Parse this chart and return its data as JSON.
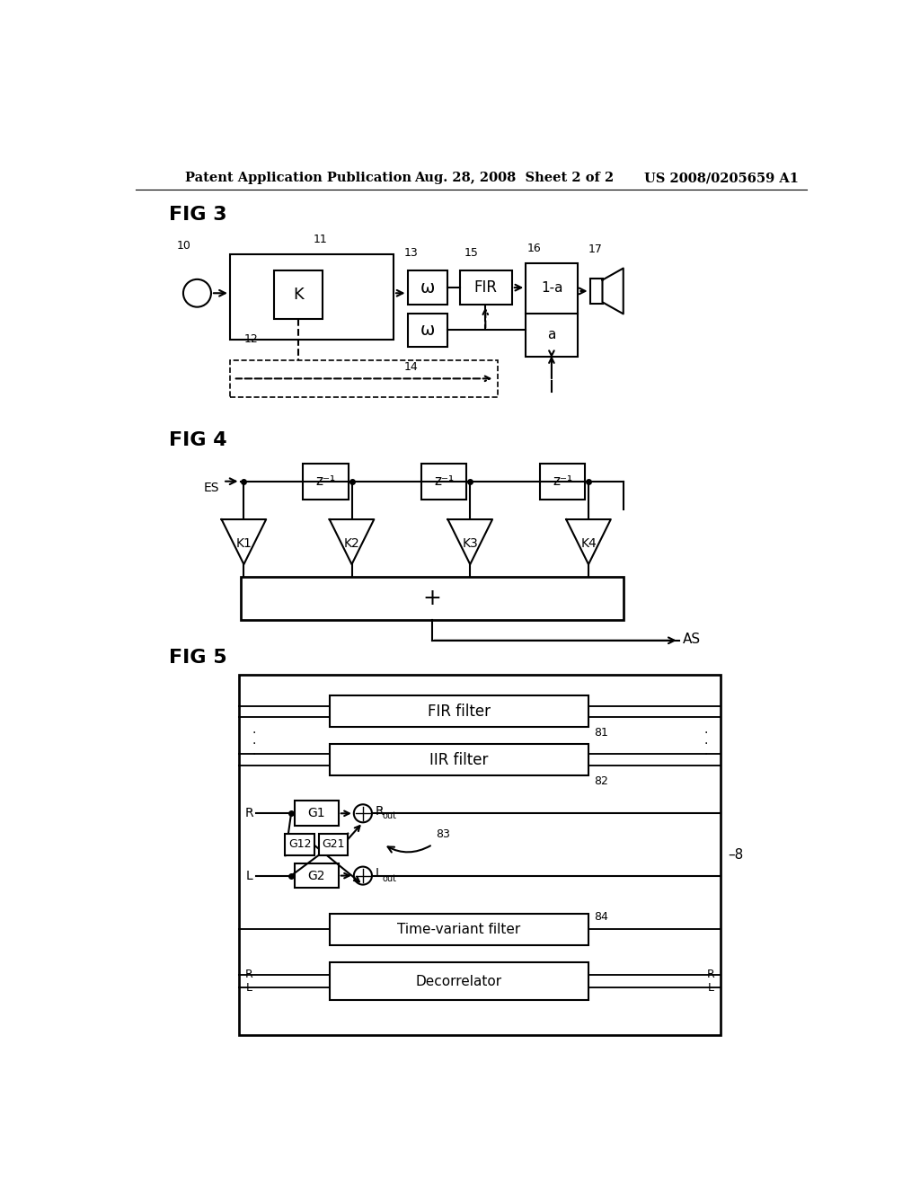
{
  "bg_color": "#ffffff",
  "header_left": "Patent Application Publication",
  "header_center": "Aug. 28, 2008  Sheet 2 of 2",
  "header_right": "US 2008/0205659 A1",
  "fig3_label": "FIG 3",
  "fig4_label": "FIG 4",
  "fig5_label": "FIG 5"
}
